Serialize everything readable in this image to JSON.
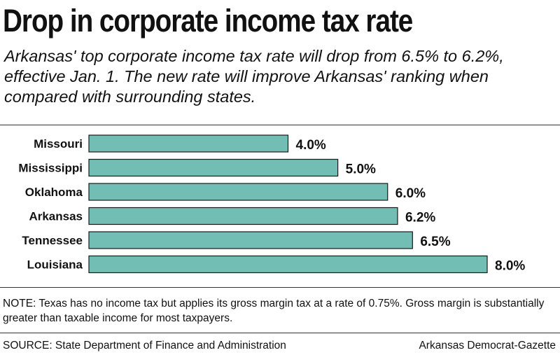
{
  "header": {
    "title": "Drop in corporate income tax rate",
    "subtitle": "Arkansas' top corporate income tax rate will drop from 6.5% to 6.2%, effective Jan. 1. The new rate will improve Arkansas' ranking when compared with surrounding states."
  },
  "chart_data": {
    "type": "bar",
    "orientation": "horizontal",
    "categories": [
      "Missouri",
      "Mississippi",
      "Oklahoma",
      "Arkansas",
      "Tennessee",
      "Louisiana"
    ],
    "values": [
      4.0,
      5.0,
      6.0,
      6.2,
      6.5,
      8.0
    ],
    "value_labels": [
      "4.0%",
      "5.0%",
      "6.0%",
      "6.2%",
      "6.5%",
      "8.0%"
    ],
    "unit": "%",
    "xlim": [
      0,
      8.0
    ],
    "bar_color": "#72bdb4",
    "grid": false,
    "legend": "none"
  },
  "footer": {
    "note": "NOTE: Texas has no income tax but applies its gross margin tax at a rate of 0.75%. Gross margin is substantially greater than taxable income for most taxpayers.",
    "source": "SOURCE: State Department of Finance and Administration",
    "credit": "Arkansas Democrat-Gazette"
  }
}
